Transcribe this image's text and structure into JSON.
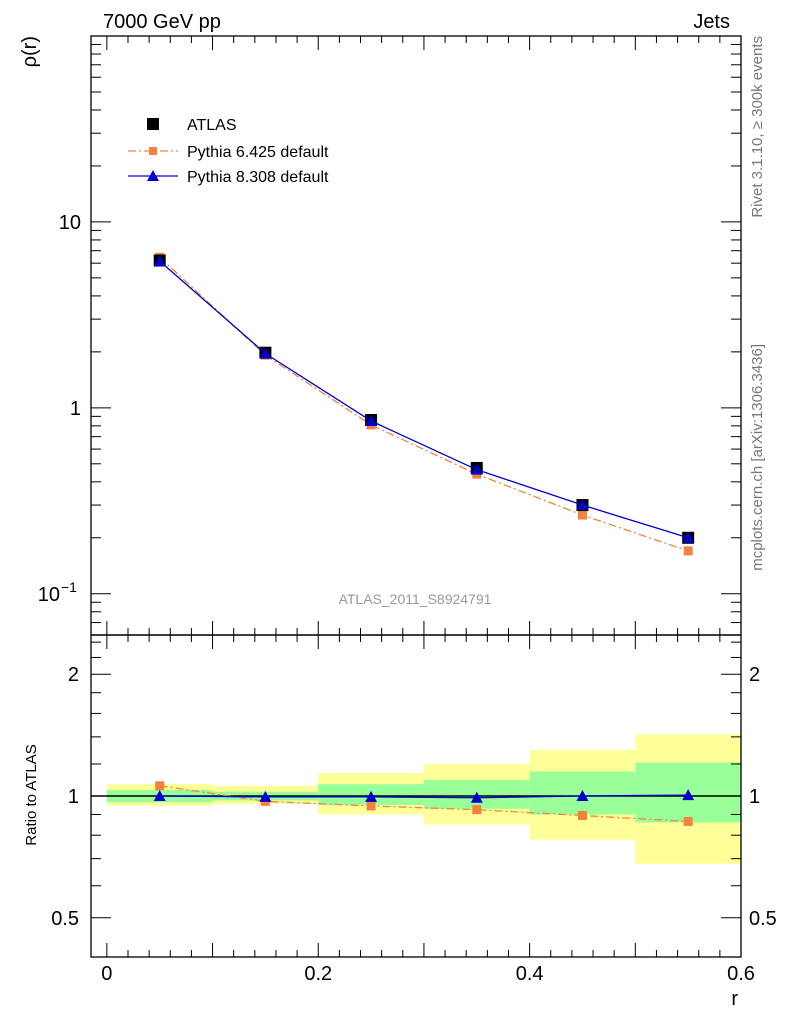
{
  "header": {
    "left": "7000 GeV pp",
    "right": "Jets"
  },
  "side_labels": {
    "rivet": "Rivet 3.1.10, ≥ 300k events",
    "source": "mcplots.cern.ch [arXiv:1306.3436]"
  },
  "watermark": "ATLAS_2011_S8924791",
  "colors": {
    "atlas": "#000000",
    "pythia6": "#f5823c",
    "pythia8": "#0000cc",
    "band_inner": "#99ff99",
    "band_outer": "#ffff99"
  },
  "chart_data": [
    {
      "type": "line",
      "ylabel": "ρ(r)",
      "yscale": "log",
      "ylim": [
        0.06,
        100
      ],
      "xlim": [
        -0.015,
        0.6
      ],
      "yticks": [
        {
          "value": 0.1,
          "base": "10",
          "exp": "−1"
        },
        {
          "value": 1,
          "label": "1"
        },
        {
          "value": 10,
          "label": "10"
        }
      ],
      "legend": {
        "placement": "top-left",
        "entries": [
          "ATLAS",
          "Pythia 6.425 default",
          "Pythia 8.308 default"
        ]
      },
      "series": [
        {
          "name": "ATLAS",
          "x": [
            0.05,
            0.15,
            0.25,
            0.35,
            0.45,
            0.55
          ],
          "y": [
            6.2,
            1.98,
            0.86,
            0.475,
            0.3,
            0.2
          ]
        },
        {
          "name": "Pythia 6.425 default",
          "x": [
            0.05,
            0.15,
            0.25,
            0.35,
            0.45,
            0.55
          ],
          "y": [
            6.45,
            1.92,
            0.81,
            0.44,
            0.265,
            0.17
          ]
        },
        {
          "name": "Pythia 8.308 default",
          "x": [
            0.05,
            0.15,
            0.25,
            0.35,
            0.45,
            0.55
          ],
          "y": [
            6.15,
            1.96,
            0.85,
            0.465,
            0.3,
            0.2
          ]
        }
      ]
    },
    {
      "type": "line",
      "ylabel": "Ratio to ATLAS",
      "xlabel": "r",
      "xlim": [
        -0.015,
        0.6
      ],
      "ylim": [
        0.4,
        2.5
      ],
      "yscale": "log",
      "xticks": [
        {
          "value": 0,
          "label": "0"
        },
        {
          "value": 0.2,
          "label": "0.2"
        },
        {
          "value": 0.4,
          "label": "0.4"
        },
        {
          "value": 0.6,
          "label": "0.6"
        }
      ],
      "yticks": [
        {
          "value": 0.5,
          "label": "0.5"
        },
        {
          "value": 1,
          "label": "1"
        },
        {
          "value": 2,
          "label": "2"
        }
      ],
      "bands": [
        {
          "x0": 0.0,
          "x1": 0.1,
          "inner": [
            0.965,
            1.035
          ],
          "outer": [
            0.945,
            1.07
          ]
        },
        {
          "x0": 0.1,
          "x1": 0.2,
          "inner": [
            0.975,
            1.025
          ],
          "outer": [
            0.955,
            1.06
          ]
        },
        {
          "x0": 0.2,
          "x1": 0.3,
          "inner": [
            0.95,
            1.07
          ],
          "outer": [
            0.9,
            1.14
          ]
        },
        {
          "x0": 0.3,
          "x1": 0.4,
          "inner": [
            0.93,
            1.095
          ],
          "outer": [
            0.85,
            1.2
          ]
        },
        {
          "x0": 0.4,
          "x1": 0.5,
          "inner": [
            0.9,
            1.15
          ],
          "outer": [
            0.78,
            1.3
          ]
        },
        {
          "x0": 0.5,
          "x1": 0.6,
          "inner": [
            0.86,
            1.21
          ],
          "outer": [
            0.68,
            1.42
          ]
        }
      ],
      "series": [
        {
          "name": "Pythia 6.425 default",
          "x": [
            0.05,
            0.15,
            0.25,
            0.35,
            0.45,
            0.55
          ],
          "y": [
            1.06,
            0.97,
            0.945,
            0.925,
            0.895,
            0.865
          ]
        },
        {
          "name": "Pythia 8.308 default",
          "x": [
            0.05,
            0.15,
            0.25,
            0.35,
            0.45,
            0.55
          ],
          "y": [
            1.0,
            0.995,
            0.995,
            0.99,
            1.0,
            1.005
          ]
        }
      ]
    }
  ]
}
